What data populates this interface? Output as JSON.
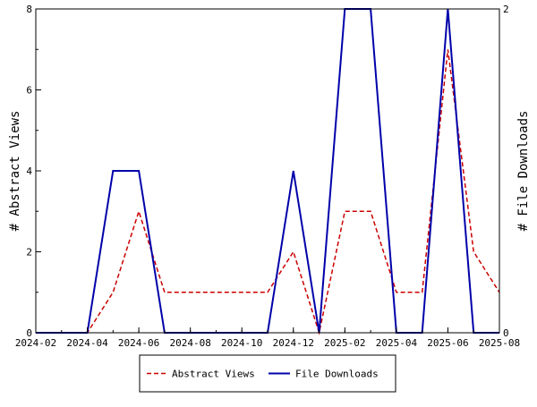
{
  "chart_data": {
    "type": "line",
    "title": "",
    "xlabel": "",
    "ylabel": "# Abstract Views",
    "ylabel_right": "# File Downloads",
    "x_ticks": [
      "2024-02",
      "2024-04",
      "2024-06",
      "2024-08",
      "2024-10",
      "2024-12",
      "2025-02",
      "2025-04",
      "2025-06",
      "2025-08"
    ],
    "x": [
      "2024-02",
      "2024-03",
      "2024-04",
      "2024-05",
      "2024-06",
      "2024-07",
      "2024-08",
      "2024-09",
      "2024-10",
      "2024-11",
      "2024-12",
      "2025-01",
      "2025-02",
      "2025-03",
      "2025-04",
      "2025-05",
      "2025-06",
      "2025-07",
      "2025-08"
    ],
    "ylim": [
      0,
      8
    ],
    "ylim_right": [
      0,
      2
    ],
    "y_ticks": [
      "0",
      "2",
      "4",
      "6",
      "8"
    ],
    "y_ticks_right": [
      "0",
      "2"
    ],
    "grid": false,
    "legend_position": "bottom-center",
    "series": [
      {
        "name": "Abstract Views",
        "axis": "left",
        "color": "#cc0000",
        "style": "dashed",
        "values": [
          0,
          0,
          0,
          1,
          3,
          1,
          1,
          1,
          1,
          1,
          2,
          0,
          3,
          3,
          1,
          1,
          7,
          2,
          1
        ]
      },
      {
        "name": "File Downloads",
        "axis": "right",
        "color": "#0000aa",
        "style": "solid",
        "values": [
          0,
          0,
          0,
          1,
          1,
          0,
          0,
          0,
          0,
          0,
          1,
          0,
          2,
          2,
          0,
          0,
          2,
          0,
          0
        ]
      }
    ]
  }
}
